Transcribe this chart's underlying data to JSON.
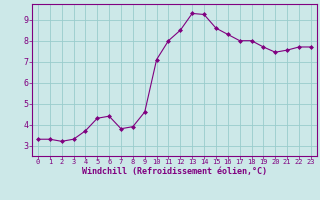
{
  "x": [
    0,
    1,
    2,
    3,
    4,
    5,
    6,
    7,
    8,
    9,
    10,
    11,
    12,
    13,
    14,
    15,
    16,
    17,
    18,
    19,
    20,
    21,
    22,
    23
  ],
  "y": [
    3.3,
    3.3,
    3.2,
    3.3,
    3.7,
    4.3,
    4.4,
    3.8,
    3.9,
    4.6,
    7.1,
    8.0,
    8.5,
    9.3,
    9.25,
    8.6,
    8.3,
    8.0,
    8.0,
    7.7,
    7.45,
    7.55,
    7.7,
    7.7
  ],
  "line_color": "#800080",
  "marker": "D",
  "marker_size": 2.0,
  "bg_color": "#cce8e8",
  "grid_color": "#99cccc",
  "xlabel": "Windchill (Refroidissement éolien,°C)",
  "xlim": [
    -0.5,
    23.5
  ],
  "ylim": [
    2.5,
    9.75
  ],
  "xticks": [
    0,
    1,
    2,
    3,
    4,
    5,
    6,
    7,
    8,
    9,
    10,
    11,
    12,
    13,
    14,
    15,
    16,
    17,
    18,
    19,
    20,
    21,
    22,
    23
  ],
  "yticks": [
    3,
    4,
    5,
    6,
    7,
    8,
    9
  ],
  "xlabel_color": "#800080",
  "tick_color": "#800080",
  "axis_color": "#800080"
}
